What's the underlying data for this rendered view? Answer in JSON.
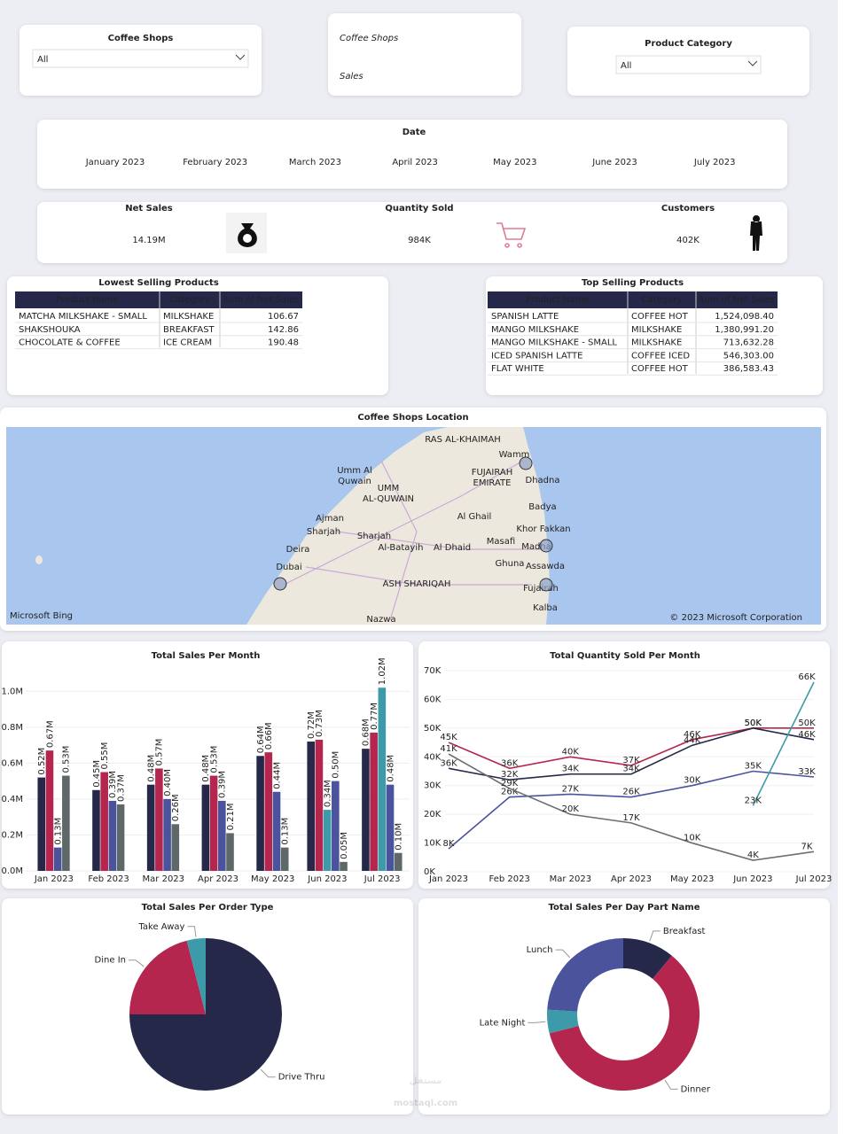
{
  "filters": [
    {
      "title": "Coffee Shops",
      "value": "All"
    },
    {
      "title": "Product Category",
      "value": "All"
    }
  ],
  "header": {
    "title_lines": [
      "Coffee Shops",
      "Sales"
    ]
  },
  "date_slicer": {
    "title": "Date",
    "months": [
      "January 2023",
      "February 2023",
      "March 2023",
      "April 2023",
      "May 2023",
      "June 2023",
      "July 2023"
    ]
  },
  "kpis": [
    {
      "label": "Net Sales",
      "value": "14.19M"
    },
    {
      "label": "Quantity Sold",
      "value": "984K"
    },
    {
      "label": "Customers",
      "value": "402K"
    }
  ],
  "tables": [
    {
      "title": "Lowest Selling Products",
      "columns": [
        "Product Name",
        "Category",
        "Sum of Net Sales"
      ],
      "rows": [
        [
          "MATCHA MILKSHAKE - SMALL",
          "MILKSHAKE",
          "106.67"
        ],
        [
          "SHAKSHOUKA",
          "BREAKFAST",
          "142.86"
        ],
        [
          "CHOCOLATE & COFFEE",
          "ICE CREAM",
          "190.48"
        ]
      ]
    },
    {
      "title": "Top Selling Products",
      "columns": [
        "Product Name",
        "Category",
        "Sum of Net Sales"
      ],
      "rows": [
        [
          "SPANISH LATTE",
          "COFFEE HOT",
          "1,524,098.40"
        ],
        [
          "MANGO MILKSHAKE",
          "MILKSHAKE",
          "1,380,991.20"
        ],
        [
          "MANGO MILKSHAKE - SMALL",
          "MILKSHAKE",
          "713,632.28"
        ],
        [
          "ICED SPANISH LATTE",
          "COFFEE ICED",
          "546,303.00"
        ],
        [
          "FLAT WHITE",
          "COFFEE HOT",
          "386,583.43"
        ]
      ]
    }
  ],
  "map": {
    "title": "Coffee Shops Location",
    "places": [
      "RAS AL-KHAIMAH",
      "Wamm",
      "FUJAIRAH",
      "EMIRATE",
      "Dhadna",
      "Umm Al",
      "Quwain",
      "UMM",
      "AL-QUWAIN",
      "Badya",
      "Al Ghail",
      "Ajman",
      "Sharjah",
      "Sharjah",
      "Khor Fakkan",
      "Masafi",
      "Madha",
      "Deira",
      "Al-Batayih",
      "Al Dhaid",
      "Ghuna",
      "Assawda",
      "Dubai",
      "ASH SHARIQAH",
      "Fujairah",
      "Kalba",
      "Nazwa"
    ],
    "attribution": [
      "Microsoft Bing",
      "© 2023 Microsoft Corporation"
    ]
  },
  "chart_data": [
    {
      "type": "bar",
      "title": "Total Sales Per Month",
      "categories": [
        "Jan 2023",
        "Feb 2023",
        "Mar 2023",
        "Apr 2023",
        "May 2023",
        "Jun 2023",
        "Jul 2023"
      ],
      "series": [
        {
          "color": "#252849",
          "values": [
            520000,
            450000,
            480000,
            480000,
            640000,
            720000,
            680000
          ],
          "value_labels": [
            "0.52M",
            "0.45M",
            "0.48M",
            "0.48M",
            "0.64M",
            "0.72M",
            "0.68M"
          ]
        },
        {
          "color": "#b5264f",
          "values": [
            670000,
            550000,
            570000,
            530000,
            660000,
            730000,
            770000
          ],
          "value_labels": [
            "0.67M",
            "0.55M",
            "0.57M",
            "0.53M",
            "0.66M",
            "0.73M",
            "0.77M"
          ]
        },
        {
          "color": "#3d9aa8",
          "values": [
            null,
            null,
            null,
            null,
            null,
            340000,
            1020000
          ],
          "value_labels": [
            null,
            null,
            null,
            null,
            null,
            "0.34M",
            "1.02M"
          ]
        },
        {
          "color": "#4a539c",
          "values": [
            130000,
            390000,
            400000,
            390000,
            440000,
            500000,
            480000
          ],
          "value_labels": [
            "0.13M",
            "0.39M",
            "0.40M",
            "0.39M",
            "0.44M",
            "0.50M",
            "0.48M"
          ]
        },
        {
          "color": "#5e6869",
          "values": [
            530000,
            370000,
            260000,
            210000,
            130000,
            50000,
            100000
          ],
          "value_labels": [
            "0.53M",
            "0.37M",
            "0.26M",
            "0.21M",
            "0.13M",
            "0.05M",
            "0.10M"
          ]
        }
      ],
      "ylim": [
        0,
        1100000
      ],
      "yticks": [
        {
          "value": 0,
          "label": "0.0M"
        },
        {
          "value": 200000,
          "label": "0.2M"
        },
        {
          "value": 400000,
          "label": "0.4M"
        },
        {
          "value": 600000,
          "label": "0.6M"
        },
        {
          "value": 800000,
          "label": "0.8M"
        },
        {
          "value": 1000000,
          "label": "1.0M"
        }
      ]
    },
    {
      "type": "line",
      "title": "Total Quantity Sold Per Month",
      "categories": [
        "Jan 2023",
        "Feb 2023",
        "Mar 2023",
        "Apr 2023",
        "May 2023",
        "Jun 2023",
        "Jul 2023"
      ],
      "series": [
        {
          "color": "#b5264f",
          "values": [
            45000,
            36000,
            40000,
            37000,
            46000,
            50000,
            50000
          ],
          "value_labels": [
            "45K",
            "36K",
            "40K",
            "37K",
            "46K",
            "50K",
            "50K"
          ]
        },
        {
          "color": "#252849",
          "values": [
            36000,
            32000,
            34000,
            34000,
            44000,
            50000,
            46000
          ],
          "value_labels": [
            "36K",
            "32K",
            "34K",
            "34K",
            "44K",
            "50K",
            "46K"
          ]
        },
        {
          "color": "#4a539c",
          "values": [
            8000,
            26000,
            27000,
            26000,
            30000,
            35000,
            33000
          ],
          "value_labels": [
            "8K",
            "26K",
            "27K",
            "26K",
            "30K",
            "35K",
            "33K"
          ]
        },
        {
          "color": "#6b6f72",
          "values": [
            41000,
            29000,
            20000,
            17000,
            10000,
            4000,
            7000
          ],
          "value_labels": [
            "41K",
            "29K",
            "20K",
            "17K",
            "10K",
            "4K",
            "7K"
          ]
        },
        {
          "color": "#3d9aa8",
          "values": [
            null,
            null,
            null,
            null,
            null,
            23000,
            66000
          ],
          "value_labels": [
            null,
            null,
            null,
            null,
            null,
            "23K",
            "66K"
          ]
        }
      ],
      "ylim": [
        0,
        70000
      ],
      "yticks": [
        {
          "value": 0,
          "label": "0K"
        },
        {
          "value": 10000,
          "label": "10K"
        },
        {
          "value": 20000,
          "label": "20K"
        },
        {
          "value": 30000,
          "label": "30K"
        },
        {
          "value": 40000,
          "label": "40K"
        },
        {
          "value": 50000,
          "label": "50K"
        },
        {
          "value": 60000,
          "label": "60K"
        },
        {
          "value": 70000,
          "label": "70K"
        }
      ]
    },
    {
      "type": "pie",
      "title": "Total Sales Per Order Type",
      "categories": [
        "Drive Thru",
        "Dine In",
        "Take Away"
      ],
      "values": [
        75,
        21,
        4
      ],
      "colors": [
        "#252849",
        "#b5264f",
        "#3d9aa8"
      ]
    },
    {
      "type": "donut",
      "title": "Total Sales Per Day Part Name",
      "categories": [
        "Breakfast",
        "Dinner",
        "Late Night",
        "Lunch"
      ],
      "values": [
        11,
        60,
        5,
        24
      ],
      "colors": [
        "#252849",
        "#b5264f",
        "#3d9aa8",
        "#4a539c"
      ]
    }
  ],
  "watermark": [
    "مستقل",
    "mostaql.com"
  ]
}
